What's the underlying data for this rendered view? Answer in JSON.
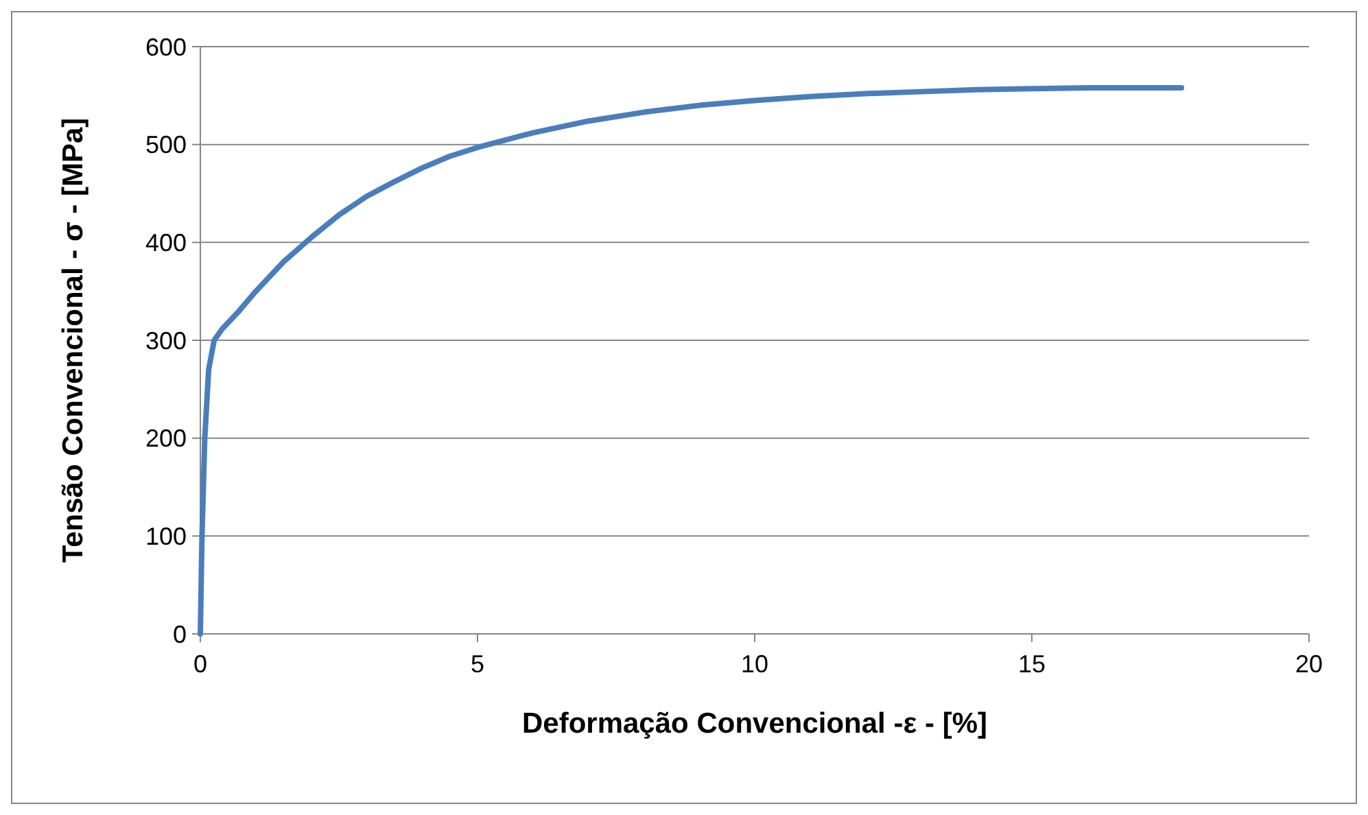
{
  "chart_data": {
    "type": "line",
    "xlabel": "Deformação Convencional -ε - [%]",
    "ylabel": "Tensão Convencional - σ -  [MPa]",
    "xlim": [
      0,
      20
    ],
    "xticks": [
      0,
      5,
      10,
      15,
      20
    ],
    "ylim": [
      0,
      600
    ],
    "yticks": [
      0,
      100,
      200,
      300,
      400,
      500,
      600
    ],
    "grid": "y",
    "marker": "none",
    "line_style": "solid",
    "series": [
      {
        "color": "#4a7ebb",
        "x": [
          0,
          0.03,
          0.08,
          0.15,
          0.25,
          0.4,
          0.7,
          1,
          1.5,
          2,
          2.5,
          3,
          3.5,
          4,
          4.5,
          5,
          6,
          7,
          8,
          9,
          10,
          11,
          12,
          13,
          14,
          15,
          16,
          17,
          17.7
        ],
        "values": [
          0,
          100,
          200,
          270,
          300,
          312,
          330,
          350,
          380,
          405,
          428,
          447,
          462,
          476,
          488,
          497,
          512,
          524,
          533,
          540,
          545,
          549,
          552,
          554,
          556,
          557,
          558,
          558,
          558
        ]
      }
    ]
  }
}
